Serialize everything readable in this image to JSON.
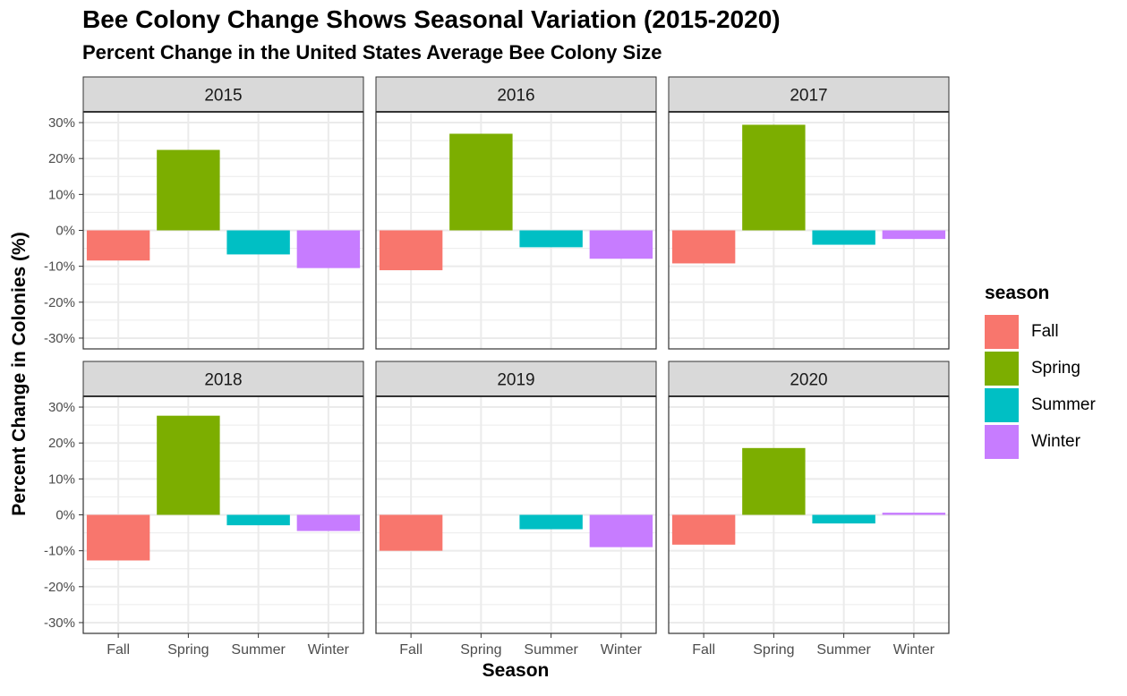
{
  "chart_data": {
    "type": "bar",
    "title": "Bee Colony Change Shows Seasonal Variation (2015-2020)",
    "subtitle": "Percent Change in the United States Average Bee Colony Size",
    "xlabel": "Season",
    "ylabel": "Percent Change in Colonies (%)",
    "ylim": [
      -33,
      33
    ],
    "yticks": [
      -30,
      -20,
      -10,
      0,
      10,
      20,
      30
    ],
    "ytick_labels": [
      "-30%",
      "-20%",
      "-10%",
      "0%",
      "10%",
      "20%",
      "30%"
    ],
    "categories": [
      "Fall",
      "Spring",
      "Summer",
      "Winter"
    ],
    "grid": true,
    "legend": {
      "title": "season",
      "position": "right",
      "entries": [
        "Fall",
        "Spring",
        "Summer",
        "Winter"
      ]
    },
    "colors": {
      "Fall": "#F8766D",
      "Spring": "#7CAE00",
      "Summer": "#00BFC4",
      "Winter": "#C77CFF"
    },
    "facets": [
      {
        "label": "2015",
        "values": [
          -8.4,
          22.4,
          -6.7,
          -10.5
        ]
      },
      {
        "label": "2016",
        "values": [
          -11.1,
          26.9,
          -4.7,
          -7.9
        ]
      },
      {
        "label": "2017",
        "values": [
          -9.2,
          29.4,
          -4.0,
          -2.4
        ]
      },
      {
        "label": "2018",
        "values": [
          -12.7,
          27.6,
          -2.9,
          -4.5
        ]
      },
      {
        "label": "2019",
        "values": [
          -10.0,
          null,
          -4.0,
          -9.0
        ]
      },
      {
        "label": "2020",
        "values": [
          -8.3,
          18.6,
          -2.4,
          0.6
        ]
      }
    ]
  }
}
